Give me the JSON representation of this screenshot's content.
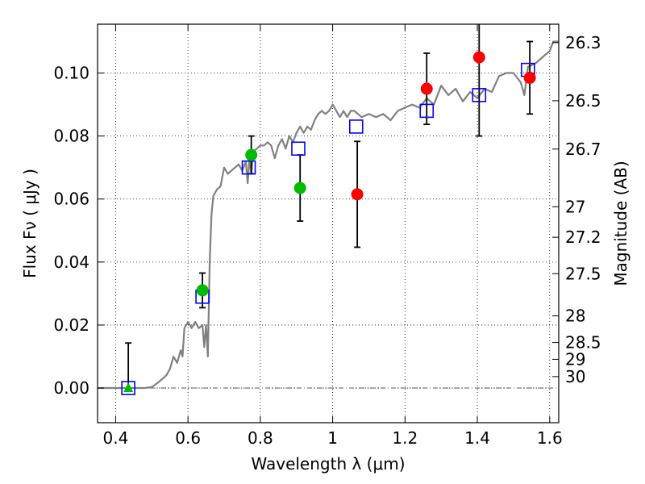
{
  "chart_data": {
    "type": "scatter",
    "xlabel": "Wavelength  λ (μm)",
    "ylabel": "Flux  Fν  ( μJy )",
    "y2label": "Magnitude (AB)",
    "xlim": [
      0.35,
      1.625
    ],
    "ylim": [
      -0.011,
      0.1155
    ],
    "grid": true,
    "x_ticks": [
      {
        "value": 0.4,
        "label": "0.4"
      },
      {
        "value": 0.6,
        "label": "0.6"
      },
      {
        "value": 0.8,
        "label": "0.8"
      },
      {
        "value": 1.0,
        "label": "1"
      },
      {
        "value": 1.2,
        "label": "1.2"
      },
      {
        "value": 1.4,
        "label": "1.4"
      },
      {
        "value": 1.6,
        "label": "1.6"
      }
    ],
    "y_ticks": [
      {
        "value": 0.0,
        "label": "0.00"
      },
      {
        "value": 0.02,
        "label": "0.02"
      },
      {
        "value": 0.04,
        "label": "0.04"
      },
      {
        "value": 0.06,
        "label": "0.06"
      },
      {
        "value": 0.08,
        "label": "0.08"
      },
      {
        "value": 0.1,
        "label": "0.10"
      }
    ],
    "y2_ticks": [
      {
        "mag": 26.3,
        "label": "26.3"
      },
      {
        "mag": 26.5,
        "label": "26.5"
      },
      {
        "mag": 26.7,
        "label": "26.7"
      },
      {
        "mag": 27.0,
        "label": "27"
      },
      {
        "mag": 27.2,
        "label": "27.2"
      },
      {
        "mag": 27.5,
        "label": "27.5"
      },
      {
        "mag": 28.0,
        "label": "28"
      },
      {
        "mag": 28.5,
        "label": "28.5"
      },
      {
        "mag": 29.0,
        "label": "29"
      },
      {
        "mag": 30.0,
        "label": "30"
      }
    ],
    "model_spectrum": {
      "color": "#808080",
      "x": [
        0.35,
        0.4,
        0.46,
        0.48,
        0.5,
        0.52,
        0.54,
        0.55,
        0.56,
        0.57,
        0.58,
        0.585,
        0.59,
        0.6,
        0.61,
        0.62,
        0.63,
        0.64,
        0.645,
        0.65,
        0.655,
        0.66,
        0.665,
        0.67,
        0.68,
        0.69,
        0.7,
        0.71,
        0.72,
        0.73,
        0.74,
        0.75,
        0.76,
        0.765,
        0.77,
        0.775,
        0.78,
        0.79,
        0.8,
        0.81,
        0.82,
        0.83,
        0.84,
        0.85,
        0.86,
        0.87,
        0.88,
        0.89,
        0.9,
        0.91,
        0.92,
        0.93,
        0.94,
        0.95,
        0.96,
        0.97,
        0.98,
        0.99,
        1.0,
        1.01,
        1.02,
        1.03,
        1.04,
        1.05,
        1.06,
        1.08,
        1.1,
        1.12,
        1.14,
        1.16,
        1.18,
        1.2,
        1.22,
        1.24,
        1.26,
        1.28,
        1.3,
        1.32,
        1.34,
        1.36,
        1.38,
        1.4,
        1.42,
        1.44,
        1.46,
        1.48,
        1.5,
        1.52,
        1.53,
        1.54,
        1.56,
        1.58,
        1.6,
        1.61,
        1.625
      ],
      "y": [
        0.0,
        0.0,
        0.0,
        0.0,
        0.0003,
        0.002,
        0.004,
        0.006,
        0.01,
        0.008,
        0.012,
        0.01,
        0.019,
        0.021,
        0.019,
        0.021,
        0.019,
        0.02,
        0.013,
        0.02,
        0.01,
        0.04,
        0.055,
        0.061,
        0.063,
        0.064,
        0.07,
        0.068,
        0.069,
        0.07,
        0.071,
        0.069,
        0.072,
        0.065,
        0.073,
        0.068,
        0.075,
        0.076,
        0.077,
        0.077,
        0.078,
        0.077,
        0.073,
        0.077,
        0.079,
        0.076,
        0.08,
        0.078,
        0.081,
        0.083,
        0.081,
        0.083,
        0.082,
        0.085,
        0.087,
        0.088,
        0.087,
        0.088,
        0.09,
        0.088,
        0.086,
        0.088,
        0.086,
        0.088,
        0.088,
        0.086,
        0.087,
        0.086,
        0.087,
        0.085,
        0.088,
        0.089,
        0.09,
        0.089,
        0.092,
        0.09,
        0.096,
        0.093,
        0.095,
        0.091,
        0.094,
        0.092,
        0.095,
        0.094,
        0.099,
        0.1,
        0.1,
        0.097,
        0.093,
        0.102,
        0.103,
        0.105,
        0.107,
        0.11,
        0.11
      ]
    },
    "series": [
      {
        "marker": "open-square",
        "color": "#0000ff",
        "points": [
          {
            "x": 0.435,
            "y": 0.0
          },
          {
            "x": 0.64,
            "y": 0.029
          },
          {
            "x": 0.768,
            "y": 0.07
          },
          {
            "x": 0.905,
            "y": 0.076
          },
          {
            "x": 1.065,
            "y": 0.083
          },
          {
            "x": 1.26,
            "y": 0.088
          },
          {
            "x": 1.405,
            "y": 0.093
          },
          {
            "x": 1.54,
            "y": 0.101
          }
        ]
      },
      {
        "marker": "circle",
        "color": "#00bb00",
        "points": [
          {
            "x": 0.64,
            "y": 0.031,
            "err": 0.0055
          },
          {
            "x": 0.775,
            "y": 0.074,
            "err": 0.006
          },
          {
            "x": 0.91,
            "y": 0.0635,
            "err": 0.0105
          }
        ]
      },
      {
        "marker": "triangle",
        "color": "#00bb00",
        "points": [
          {
            "x": 0.435,
            "y": 0.0,
            "err_up": 0.0143
          }
        ]
      },
      {
        "marker": "circle",
        "color": "#ff0000",
        "points": [
          {
            "x": 1.068,
            "y": 0.0615,
            "err": 0.0168
          },
          {
            "x": 1.26,
            "y": 0.095,
            "err": 0.0113
          },
          {
            "x": 1.405,
            "y": 0.105,
            "err": 0.025
          },
          {
            "x": 1.545,
            "y": 0.0985,
            "err": 0.0115
          }
        ]
      }
    ]
  }
}
